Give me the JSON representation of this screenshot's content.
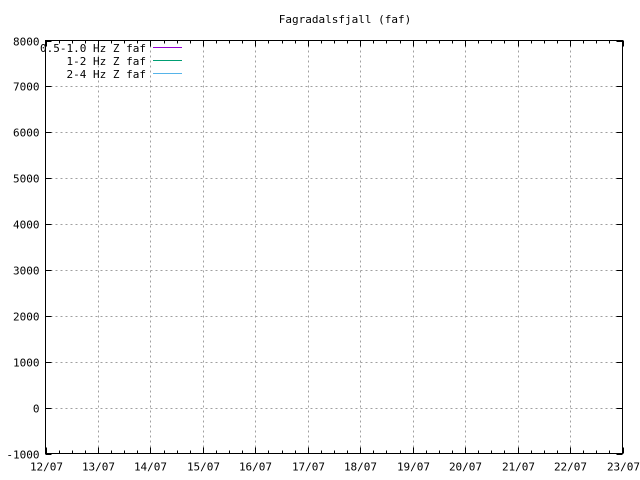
{
  "chart_data": {
    "type": "line",
    "title": "Fagradalsfjall (faf)",
    "xlabel": "",
    "ylabel": "",
    "x_ticks": [
      "12/07",
      "13/07",
      "14/07",
      "15/07",
      "16/07",
      "17/07",
      "18/07",
      "19/07",
      "20/07",
      "21/07",
      "22/07",
      "23/07"
    ],
    "ylim": [
      -1000,
      8000
    ],
    "y_ticks": [
      -1000,
      0,
      1000,
      2000,
      3000,
      4000,
      5000,
      6000,
      7000,
      8000
    ],
    "grid": true,
    "legend_position": "top-left",
    "series": [
      {
        "name": "0.5-1.0 Hz Z faf",
        "color": "#9400d3",
        "values": []
      },
      {
        "name": "1-2 Hz Z faf",
        "color": "#009e73",
        "values": []
      },
      {
        "name": "2-4 Hz Z faf",
        "color": "#56b4e9",
        "values": []
      }
    ]
  }
}
